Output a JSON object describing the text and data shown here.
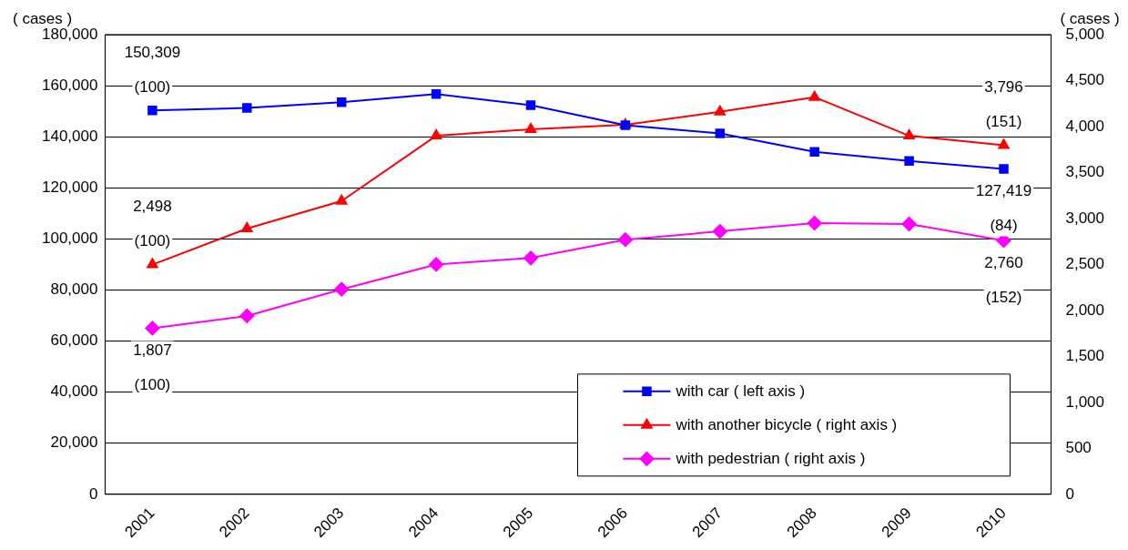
{
  "chart_data": {
    "type": "line",
    "ylabel": "( cases )",
    "y2label": "( cases )",
    "categories": [
      "2001",
      "2002",
      "2003",
      "2004",
      "2005",
      "2006",
      "2007",
      "2008",
      "2009",
      "2010"
    ],
    "ylim": [
      0,
      180000
    ],
    "yticks": [
      {
        "value": 0,
        "label": "0"
      },
      {
        "value": 20000,
        "label": "20,000"
      },
      {
        "value": 40000,
        "label": "40,000"
      },
      {
        "value": 60000,
        "label": "60,000"
      },
      {
        "value": 80000,
        "label": "80,000"
      },
      {
        "value": 100000,
        "label": "100,000"
      },
      {
        "value": 120000,
        "label": "120,000"
      },
      {
        "value": 140000,
        "label": "140,000"
      },
      {
        "value": 160000,
        "label": "160,000"
      },
      {
        "value": 180000,
        "label": "180,000"
      }
    ],
    "y2lim": [
      0,
      5000
    ],
    "y2ticks": [
      {
        "value": 0,
        "label": "0"
      },
      {
        "value": 500,
        "label": "500"
      },
      {
        "value": 1000,
        "label": "1,000"
      },
      {
        "value": 1500,
        "label": "1,500"
      },
      {
        "value": 2000,
        "label": "2,000"
      },
      {
        "value": 2500,
        "label": "2,500"
      },
      {
        "value": 3000,
        "label": "3,000"
      },
      {
        "value": 3500,
        "label": "3,500"
      },
      {
        "value": 4000,
        "label": "4,000"
      },
      {
        "value": 4500,
        "label": "4,500"
      },
      {
        "value": 5000,
        "label": "5,000"
      }
    ],
    "grid": "y",
    "legend": "bottom right",
    "line_style": "solid",
    "series": [
      {
        "name": "with car ( left axis )",
        "color": "#0000ff",
        "marker": "square",
        "values": [
          150309,
          151300,
          153500,
          156700,
          152400,
          144500,
          141300,
          134100,
          130500,
          127419
        ],
        "value_labels": [
          "150,309\n(100)",
          null,
          null,
          null,
          null,
          null,
          null,
          null,
          null,
          "127,419\n(84)"
        ]
      },
      {
        "name": "with another bicycle ( right axis )",
        "color": "#ff0000",
        "marker": "triangle",
        "axis": "y2",
        "values": [
          2498,
          2890,
          3190,
          3900,
          3970,
          4020,
          4160,
          4320,
          3900,
          3796
        ],
        "value_labels": [
          "2,498\n(100)",
          null,
          null,
          null,
          null,
          null,
          null,
          null,
          null,
          "3,796\n(151)"
        ]
      },
      {
        "name": "with pedestrian ( right axis )",
        "color": "#ff00ff",
        "marker": "diamond",
        "axis": "y2",
        "values": [
          1807,
          1940,
          2230,
          2500,
          2570,
          2770,
          2860,
          2950,
          2940,
          2760
        ],
        "value_labels": [
          "1,807\n(100)",
          null,
          null,
          null,
          null,
          null,
          null,
          null,
          null,
          "2,760\n(152)"
        ]
      }
    ]
  }
}
